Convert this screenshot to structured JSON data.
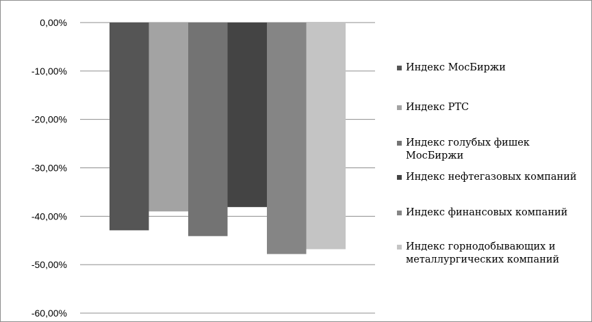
{
  "chart_data": {
    "type": "bar",
    "categories": [
      ""
    ],
    "series": [
      {
        "name": "Индекс МосБиржи",
        "values": [
          -42.9
        ],
        "color": "#555555"
      },
      {
        "name": "Индекс РТС",
        "values": [
          -39.0
        ],
        "color": "#a3a3a3"
      },
      {
        "name": "Индекс голубых фишек МосБиржи",
        "values": [
          -44.1
        ],
        "color": "#737373"
      },
      {
        "name": "Индекс нефтегазовых компаний",
        "values": [
          -38.1
        ],
        "color": "#444444"
      },
      {
        "name": "Индекс финансовых компаний",
        "values": [
          -47.8
        ],
        "color": "#858585"
      },
      {
        "name": "Индекс горнодобывающих и металлургических компаний",
        "values": [
          -46.8
        ],
        "color": "#c4c4c4"
      }
    ],
    "title": "",
    "xlabel": "",
    "ylabel": "",
    "ylim": [
      -60,
      0
    ],
    "yticks": [
      "0,00%",
      "-10,00%",
      "-20,00%",
      "-30,00%",
      "-40,00%",
      "-50,00%",
      "-60,00%"
    ],
    "grid": true,
    "legend_position": "right"
  }
}
